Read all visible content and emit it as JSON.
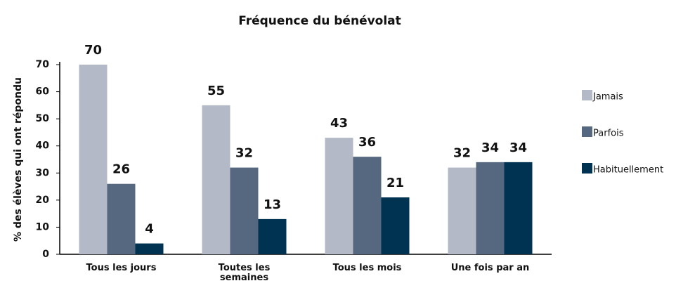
{
  "chart_data": {
    "type": "bar",
    "title": "Fréquence du bénévolat",
    "y_label": "% des élèves qui ont répondu",
    "categories": [
      "Tous les jours",
      "Toutes les semaines",
      "Tous les mois",
      "Une fois par an"
    ],
    "series": [
      {
        "name": "Jamais",
        "color": "#b3b9c6",
        "values": [
          70,
          55,
          43,
          32
        ]
      },
      {
        "name": "Parfois",
        "color": "#56687f",
        "values": [
          26,
          32,
          36,
          34
        ]
      },
      {
        "name": "Habituellement",
        "color": "#003352",
        "values": [
          4,
          13,
          21,
          34
        ]
      }
    ],
    "ylim": [
      0,
      70
    ],
    "yticks": [
      0,
      10,
      20,
      30,
      40,
      50,
      60,
      70
    ],
    "legend": "right",
    "grid": false
  }
}
